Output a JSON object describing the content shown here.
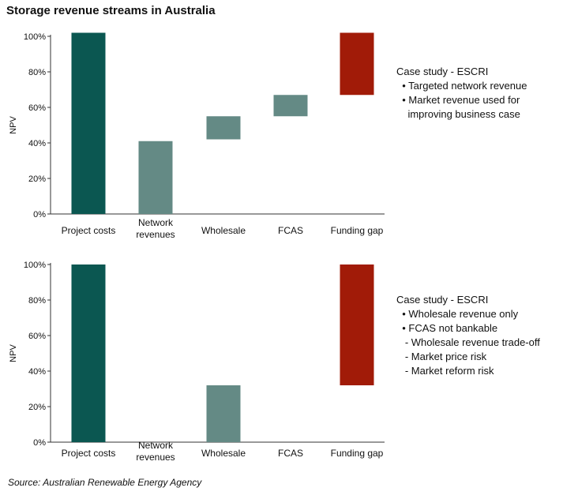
{
  "title": "Storage revenue streams in Australia",
  "source": "Source: Australian Renewable Energy Agency",
  "colors": {
    "dark": "#0b5751",
    "light": "#648a85",
    "red": "#a11b08",
    "axis": "#333333"
  },
  "chart_data": [
    {
      "type": "bar",
      "subtype": "waterfall",
      "ylabel": "NPV",
      "ylim": [
        0,
        100
      ],
      "yticks": [
        "0%",
        "20%",
        "40%",
        "60%",
        "80%",
        "100%"
      ],
      "categories": [
        "Project costs",
        "Network revenues",
        "Wholesale",
        "FCAS",
        "Funding gap"
      ],
      "bars": [
        {
          "start": 0,
          "end": 102,
          "color": "dark"
        },
        {
          "start": 0,
          "end": 41,
          "color": "light"
        },
        {
          "start": 42,
          "end": 55,
          "color": "light"
        },
        {
          "start": 55,
          "end": 67,
          "color": "light"
        },
        {
          "start": 67,
          "end": 102,
          "color": "red"
        }
      ],
      "note": [
        "Case study - ESCRI",
        "  • Targeted network revenue",
        "  • Market revenue used for",
        "    improving business case"
      ]
    },
    {
      "type": "bar",
      "subtype": "waterfall",
      "ylabel": "NPV",
      "ylim": [
        0,
        100
      ],
      "yticks": [
        "0%",
        "20%",
        "40%",
        "60%",
        "80%",
        "100%"
      ],
      "categories": [
        "Project costs",
        "Network revenues",
        "Wholesale",
        "FCAS",
        "Funding gap"
      ],
      "bars": [
        {
          "start": 0,
          "end": 100,
          "color": "dark"
        },
        {
          "start": 0,
          "end": 0,
          "color": "light"
        },
        {
          "start": 0,
          "end": 32,
          "color": "light"
        },
        {
          "start": 0,
          "end": 0,
          "color": "light"
        },
        {
          "start": 32,
          "end": 100,
          "color": "red"
        }
      ],
      "note": [
        "Case study - ESCRI",
        "  • Wholesale revenue only",
        "  • FCAS not bankable",
        "   - Wholesale revenue trade-off",
        "   - Market price risk",
        "   - Market reform risk"
      ]
    }
  ]
}
